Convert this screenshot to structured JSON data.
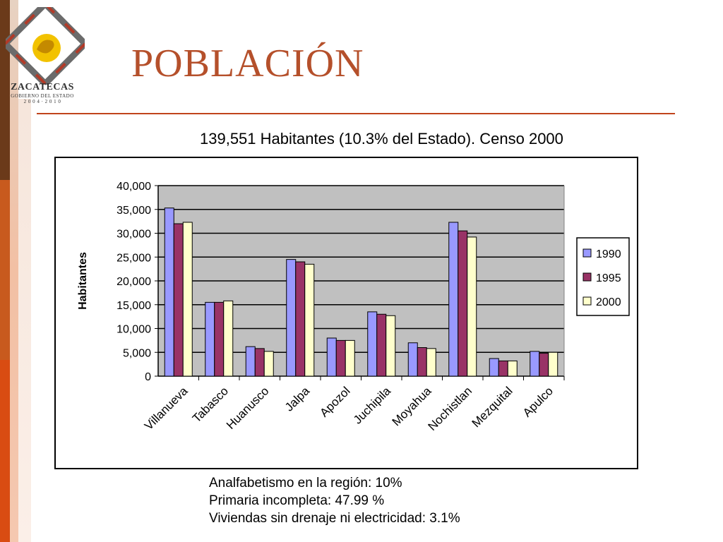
{
  "logo": {
    "name": "ZACATECAS",
    "subtitle": "GOBIERNO DEL ESTADO",
    "tagline": "2 0 0 4 · 2 0 1 0"
  },
  "title": "POBLACIÓN",
  "subtitle": "139,551 Habitantes (10.3% del Estado). Censo 2000",
  "colors": {
    "title": "#b5502b",
    "rule": "#c0441c",
    "s1990": "#9999ff",
    "s1995": "#993366",
    "s2000": "#ffffcc",
    "plot_bg": "#c0c0c0"
  },
  "chart_data": {
    "type": "bar",
    "ylabel": "Habitantes",
    "ylim": [
      0,
      40000
    ],
    "yticks": [
      "0",
      "5,000",
      "10,000",
      "15,000",
      "20,000",
      "25,000",
      "30,000",
      "35,000",
      "40,000"
    ],
    "categories": [
      "Villanueva",
      "Tabasco",
      "Huanusco",
      "Jalpa",
      "Apozol",
      "Juchipila",
      "Moyahua",
      "Nochistlan",
      "Mezquital",
      "Apulco"
    ],
    "series": [
      {
        "name": "1990",
        "values": [
          35300,
          15500,
          6200,
          24500,
          8000,
          13500,
          7000,
          32300,
          3700,
          5200
        ]
      },
      {
        "name": "1995",
        "values": [
          32000,
          15500,
          5800,
          24000,
          7500,
          13000,
          6000,
          30500,
          3200,
          4800
        ]
      },
      {
        "name": "2000",
        "values": [
          32300,
          15800,
          5200,
          23500,
          7500,
          12700,
          5800,
          29200,
          3200,
          5000
        ]
      }
    ],
    "legend": "right",
    "grid": true
  },
  "footnotes": [
    "Analfabetismo en la región: 10%",
    "Primaria incompleta: 47.99 %",
    "Viviendas sin drenaje ni electricidad: 3.1%"
  ]
}
